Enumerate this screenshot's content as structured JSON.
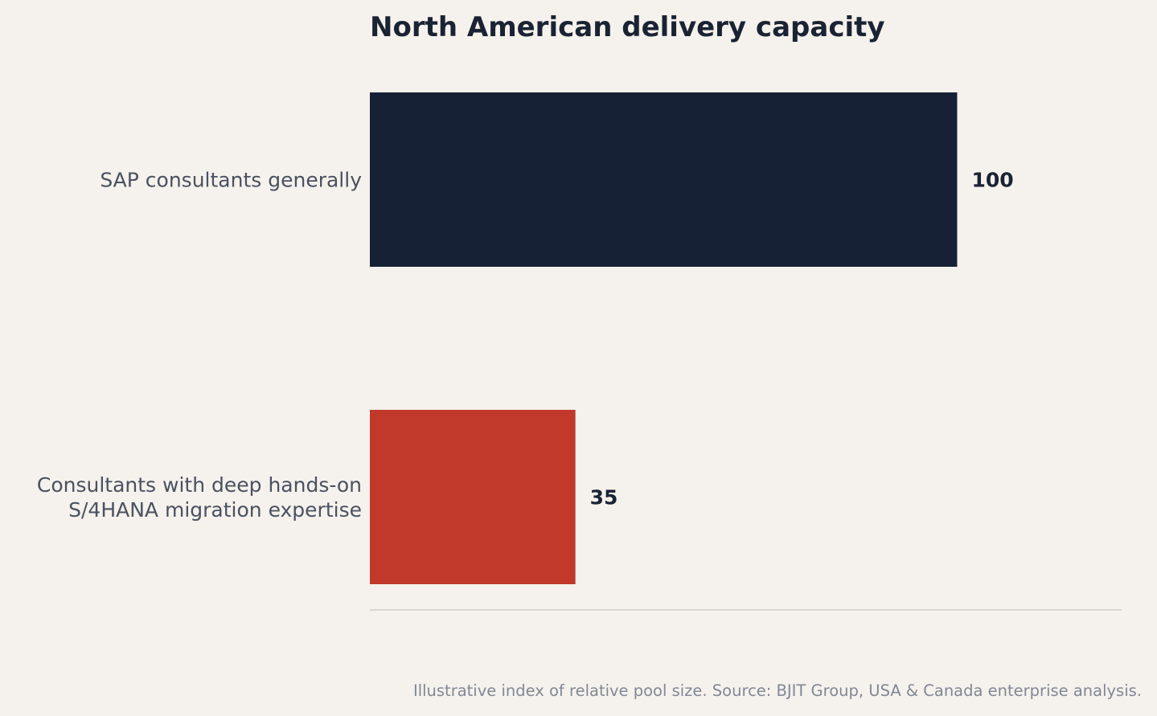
{
  "chart_data": {
    "type": "bar",
    "orientation": "horizontal",
    "title": "North American delivery capacity",
    "categories": [
      [
        "SAP consultants generally"
      ],
      [
        "Consultants with deep hands-on",
        "S/4HANA migration expertise"
      ]
    ],
    "values": [
      100,
      35
    ],
    "value_labels": [
      "100",
      "35"
    ],
    "xlim": [
      0,
      128
    ],
    "grid": false,
    "legend": "none",
    "footnote": "Illustrative index of relative pool size. Source: BJIT Group, USA & Canada enterprise analysis.",
    "colors": {
      "background": "#f5f1ec",
      "bars": [
        "#172135",
        "#c0392b"
      ],
      "axis_line": "#dad5d0"
    }
  }
}
